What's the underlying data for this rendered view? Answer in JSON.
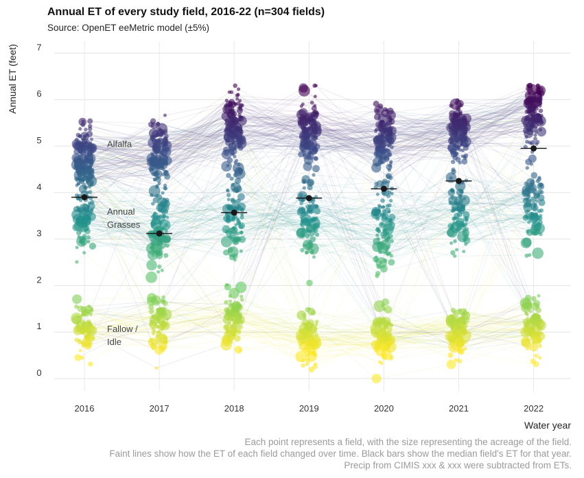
{
  "title": "Annual ET of every study field, 2016-22 (n=304 fields)",
  "subtitle": "Source: OpenET eeMetric model (±5%)",
  "caption": [
    "Each point represents a field, with the size representing the acreage of the field.",
    "Faint lines show how the ET of each field changed over time. Black bars show the median field's ET for that year.",
    "Precip from CIMIS xxx & xxx were subtracted from ETs."
  ],
  "chart_data": {
    "type": "scatter",
    "xlabel": "Water year",
    "ylabel": "Annual ET (feet)",
    "x": [
      "2016",
      "2017",
      "2018",
      "2019",
      "2020",
      "2021",
      "2022"
    ],
    "ylim": [
      0,
      7
    ],
    "yticks": [
      0,
      1,
      2,
      3,
      4,
      5,
      6,
      7
    ],
    "grid": true,
    "medians": [
      3.9,
      3.12,
      3.57,
      3.88,
      4.08,
      4.25,
      4.95
    ],
    "annotations": [
      {
        "label": "Alfalfa",
        "year": "2016",
        "y": 5.05
      },
      {
        "label": "Annual",
        "year": "2016",
        "y": 3.6
      },
      {
        "label": "Grasses",
        "year": "2016",
        "y": 3.32
      },
      {
        "label": "Fallow /",
        "year": "2016",
        "y": 1.08
      },
      {
        "label": "Idle",
        "year": "2016",
        "y": 0.8
      }
    ],
    "color_scale": [
      "#440154",
      "#3b528b",
      "#21918c",
      "#5ec962",
      "#fde725"
    ],
    "median_color": "#1a1a1a"
  }
}
